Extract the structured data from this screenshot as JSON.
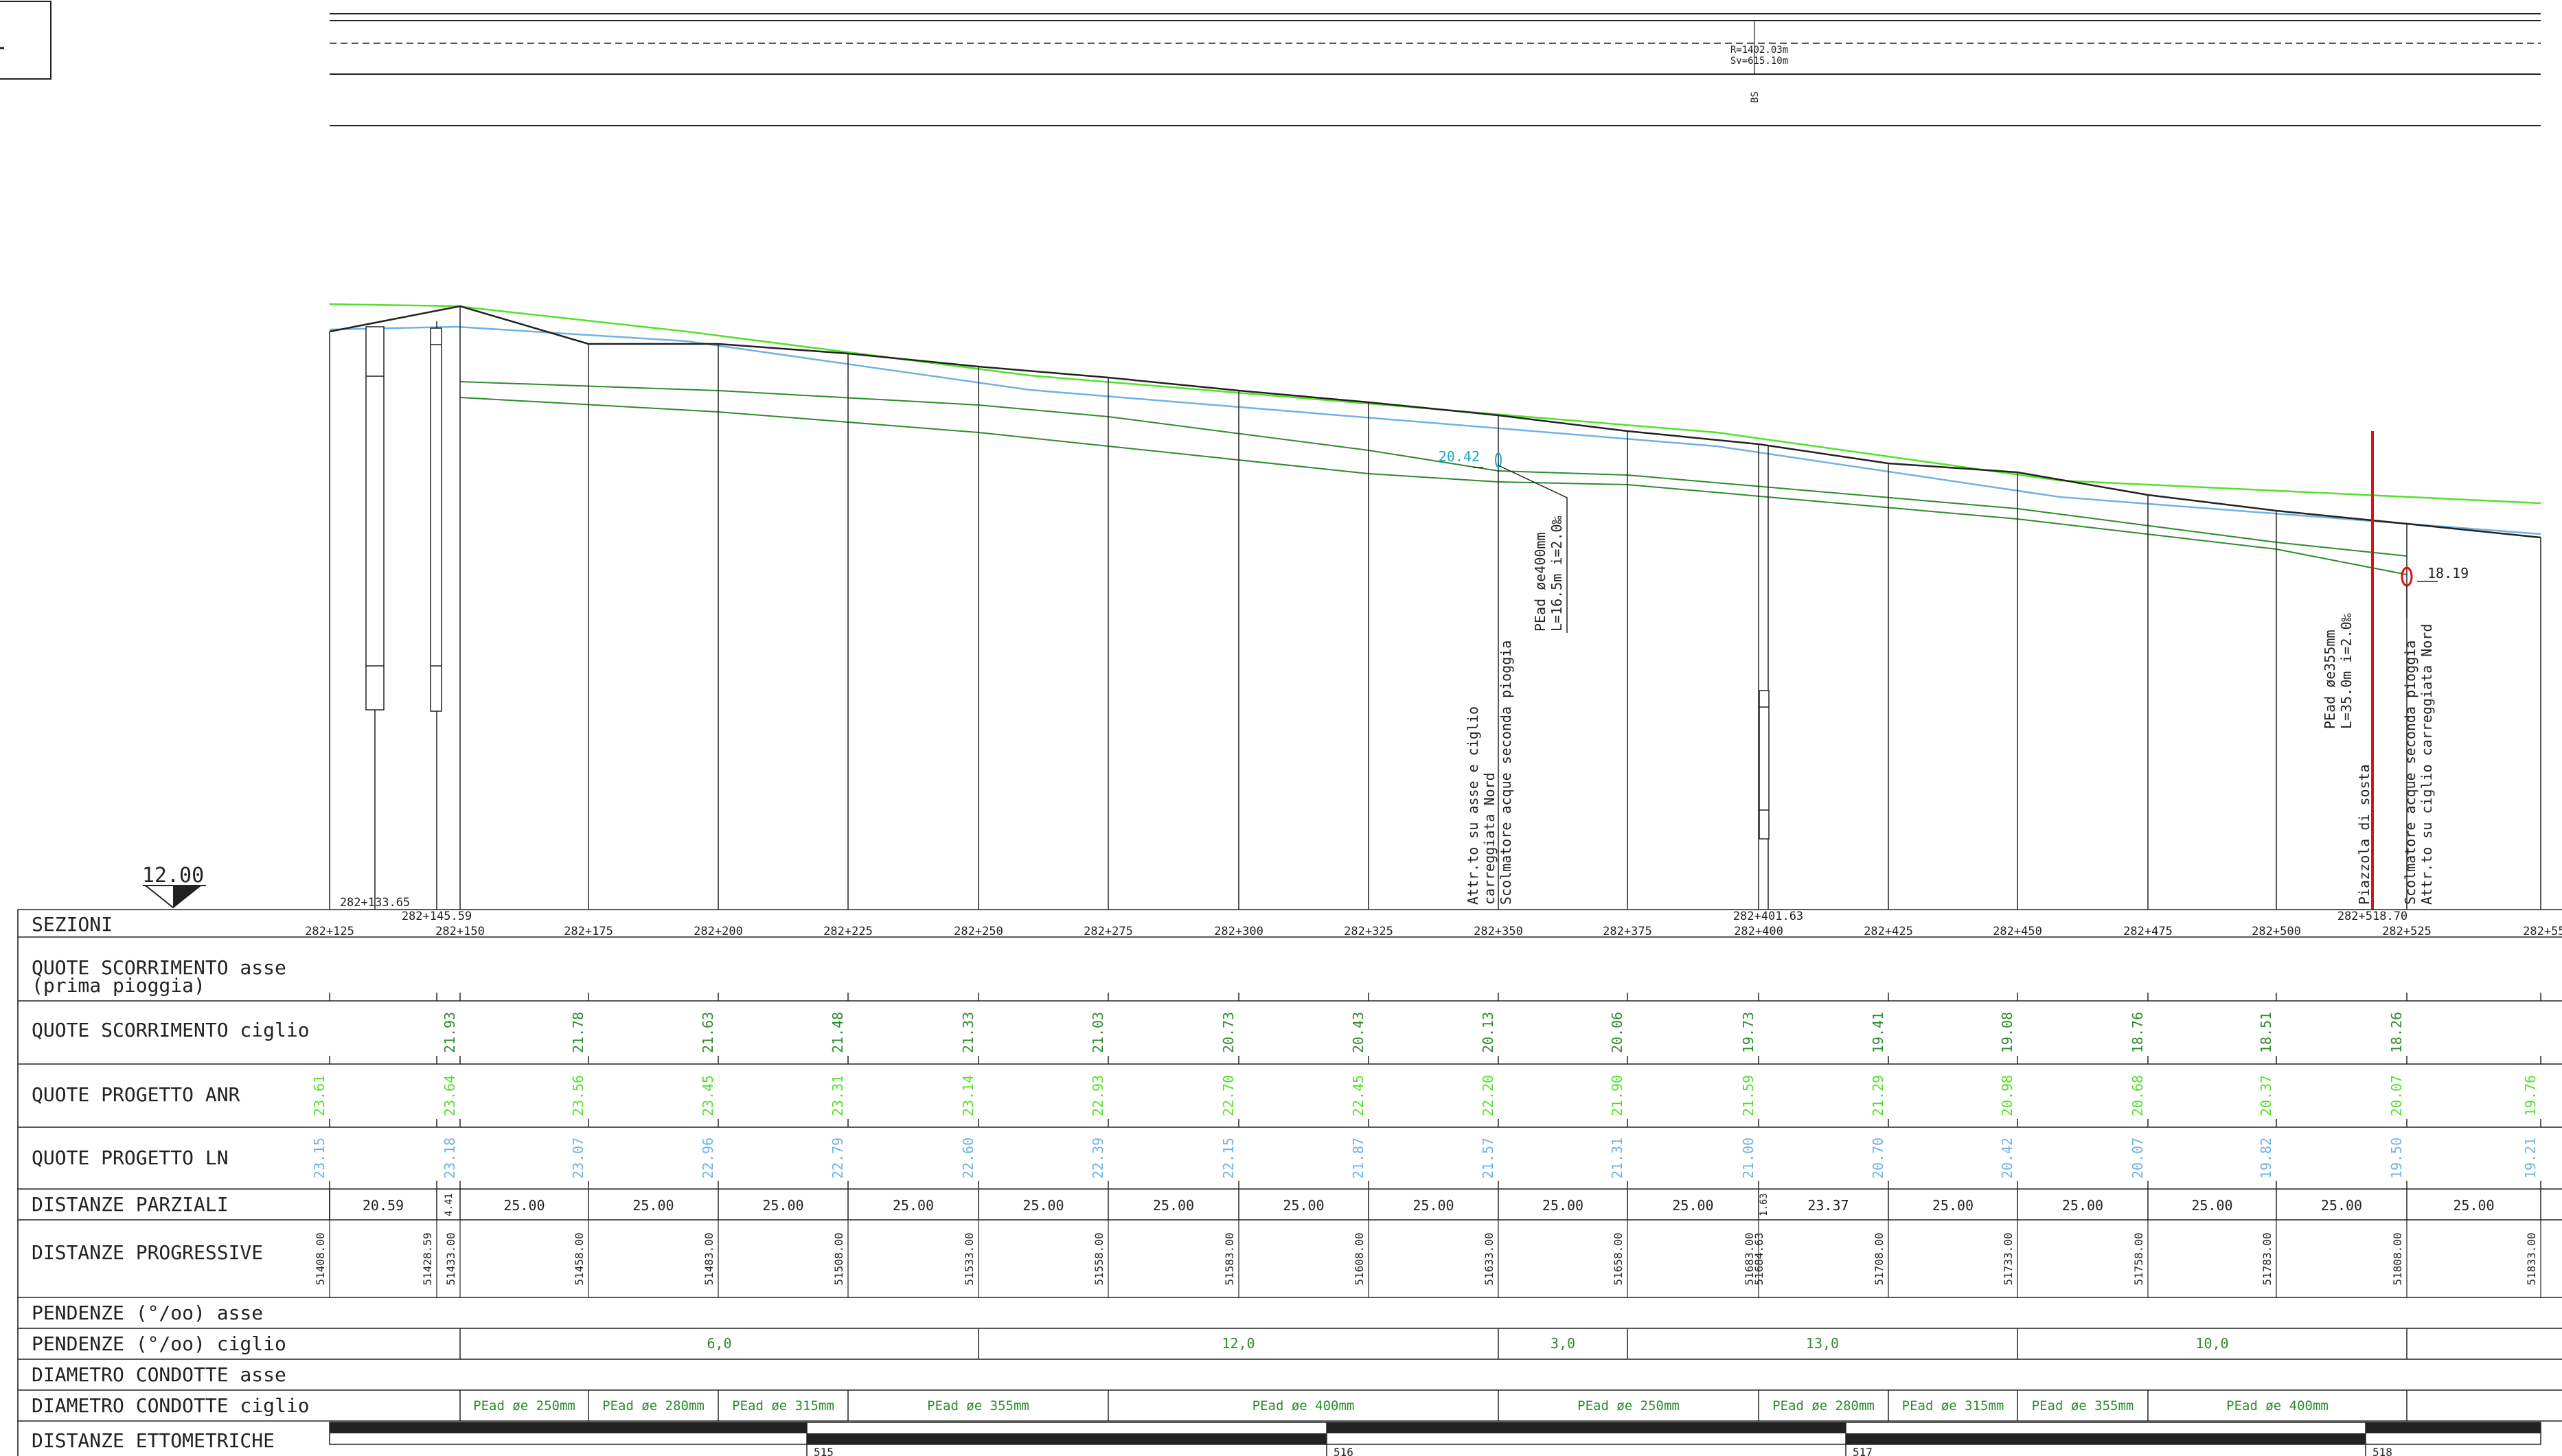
{
  "top_band": {
    "curve_radius": "R=1402.03m",
    "curve_sv": "Sv=615.10m",
    "code": "BS"
  },
  "datum": {
    "value": "12.00"
  },
  "row_labels": [
    [
      "SEZIONI"
    ],
    [
      "QUOTE SCORRIMENTO asse",
      "(prima pioggia)"
    ],
    [
      "QUOTE SCORRIMENTO ciglio"
    ],
    [
      "QUOTE PROGETTO ANR"
    ],
    [
      "QUOTE PROGETTO LN"
    ],
    [
      "DISTANZE PARZIALI"
    ],
    [
      "DISTANZE PROGRESSIVE"
    ],
    [
      "PENDENZE (°/oo) asse"
    ],
    [
      "PENDENZE (°/oo) ciglio"
    ],
    [
      "DIAMETRO CONDOTTE asse"
    ],
    [
      "DIAMETRO CONDOTTE ciglio"
    ],
    [
      "DISTANZE ETTOMETRICHE"
    ]
  ],
  "sections": [
    {
      "chain": "282+125",
      "ciglio": "",
      "anr": "23.61",
      "ln": "23.15",
      "prog": "51408.00"
    },
    {
      "chain": "282+133.65",
      "ciglio": "",
      "anr": "",
      "ln": "",
      "prog": ""
    },
    {
      "chain": "282+145.59",
      "ciglio": "",
      "anr": "",
      "ln": "",
      "prog": "51428.59"
    },
    {
      "chain": "282+150",
      "ciglio": "21.93",
      "anr": "23.64",
      "ln": "23.18",
      "prog": "51433.00"
    },
    {
      "chain": "282+175",
      "ciglio": "21.78",
      "anr": "23.56",
      "ln": "23.07",
      "prog": "51458.00"
    },
    {
      "chain": "282+200",
      "ciglio": "21.63",
      "anr": "23.45",
      "ln": "22.96",
      "prog": "51483.00"
    },
    {
      "chain": "282+225",
      "ciglio": "21.48",
      "anr": "23.31",
      "ln": "22.79",
      "prog": "51508.00"
    },
    {
      "chain": "282+250",
      "ciglio": "21.33",
      "anr": "23.14",
      "ln": "22.60",
      "prog": "51533.00"
    },
    {
      "chain": "282+275",
      "ciglio": "21.03",
      "anr": "22.93",
      "ln": "22.39",
      "prog": "51558.00"
    },
    {
      "chain": "282+300",
      "ciglio": "20.73",
      "anr": "22.70",
      "ln": "22.15",
      "prog": "51583.00"
    },
    {
      "chain": "282+325",
      "ciglio": "20.43",
      "anr": "22.45",
      "ln": "21.87",
      "prog": "51608.00"
    },
    {
      "chain": "282+350",
      "ciglio": "20.13",
      "anr": "22.20",
      "ln": "21.57",
      "prog": "51633.00"
    },
    {
      "chain": "282+375",
      "ciglio": "20.06",
      "anr": "21.90",
      "ln": "21.31",
      "prog": "51658.00"
    },
    {
      "chain": "282+400",
      "ciglio": "19.73",
      "anr": "21.59",
      "ln": "21.00",
      "prog": "51683.00"
    },
    {
      "chain": "282+401.63",
      "ciglio": "",
      "anr": "",
      "ln": "",
      "prog": "51684.63"
    },
    {
      "chain": "282+425",
      "ciglio": "19.41",
      "anr": "21.29",
      "ln": "20.70",
      "prog": "51708.00"
    },
    {
      "chain": "282+450",
      "ciglio": "19.08",
      "anr": "20.98",
      "ln": "20.42",
      "prog": "51733.00"
    },
    {
      "chain": "282+475",
      "ciglio": "18.76",
      "anr": "20.68",
      "ln": "20.07",
      "prog": "51758.00"
    },
    {
      "chain": "282+500",
      "ciglio": "18.51",
      "anr": "20.37",
      "ln": "19.82",
      "prog": "51783.00"
    },
    {
      "chain": "282+518.70",
      "ciglio": "",
      "anr": "",
      "ln": "",
      "prog": ""
    },
    {
      "chain": "282+525",
      "ciglio": "18.26",
      "anr": "20.07",
      "ln": "19.50",
      "prog": "51808.00"
    },
    {
      "chain": "282+550",
      "ciglio": "",
      "anr": "19.76",
      "ln": "19.21",
      "prog": "51833.00"
    }
  ],
  "partial_distances": [
    "20.59",
    "4.41",
    "25.00",
    "25.00",
    "25.00",
    "25.00",
    "25.00",
    "25.00",
    "25.00",
    "25.00",
    "25.00",
    "25.00",
    "1.63",
    "23.37",
    "25.00",
    "25.00",
    "25.00",
    "25.00",
    "25.00"
  ],
  "slopes_ciglio": [
    "6,0",
    "12,0",
    "3,0",
    "13,0",
    "10,0"
  ],
  "pipes_ciglio": [
    "PEad øe 250mm",
    "PEad øe 280mm",
    "PEad øe 315mm",
    "PEad øe 355mm",
    "PEad øe 400mm",
    "PEad øe 250mm",
    "PEad øe 280mm",
    "PEad øe 315mm",
    "PEad øe 355mm",
    "PEad øe 400mm"
  ],
  "hectometric": [
    "515",
    "516",
    "517",
    "518"
  ],
  "annotations": {
    "well1_level": "20.42",
    "pipe1": [
      "PEad øe400mm",
      "L=16.5m i=2.0‰"
    ],
    "note1": [
      "Attr.to su asse e ciglio",
      "carreggiata Nord",
      "Scolmatore acque seconda pioggia"
    ],
    "well2_level": "18.19",
    "pipe2": [
      "PEad øe355mm",
      "L=35.0m i=2.0‰"
    ],
    "note2": [
      "Piazzola di sosta"
    ],
    "note3": [
      "Scolmatore acque seconda pioggia",
      "Attr.to su ciglio carreggiata Nord"
    ]
  },
  "colors": {
    "line": "#222222",
    "anr": "#55e02a",
    "ln": "#6fb2e6",
    "ciglio": "#2e8b2e",
    "pipe": "#3a9a3a",
    "cyan": "#1aa7c8",
    "red": "#dd1111"
  }
}
